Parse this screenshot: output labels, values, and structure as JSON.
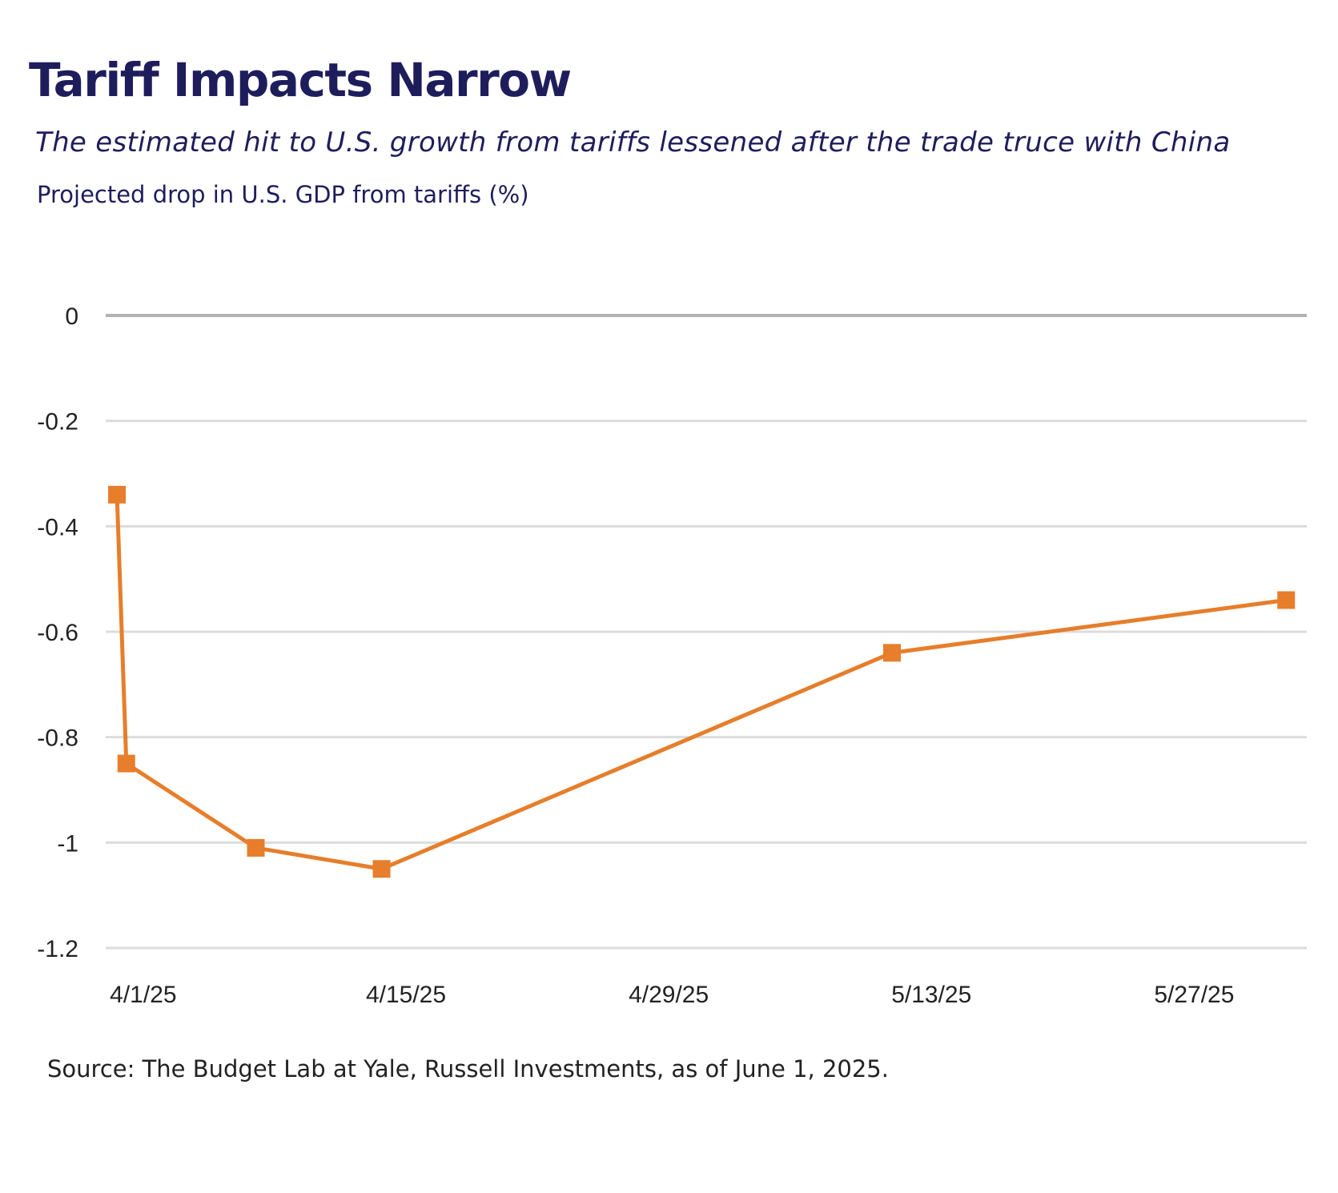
{
  "chart_data": {
    "type": "line",
    "title": "Tariff Impacts Narrow",
    "subtitle": "The estimated hit to U.S. growth from tariffs lessened after the trade truce with China",
    "ylabel": "Projected drop in U.S. GDP from tariffs (%)",
    "xlabel": "",
    "source": "Source: The Budget Lab at Yale, Russell Investments, as of June 1, 2025.",
    "ylim": [
      -1.2,
      0
    ],
    "yticks": [
      0,
      -0.2,
      -0.4,
      -0.6,
      -0.8,
      -1,
      -1.2
    ],
    "ytick_labels": [
      "0",
      "-0.2",
      "-0.4",
      "-0.6",
      "-0.8",
      "-1",
      "-1.2"
    ],
    "xlim_day": [
      -1,
      63
    ],
    "xticks_day": [
      1,
      15,
      29,
      43,
      57
    ],
    "xtick_labels": [
      "4/1/25",
      "4/15/25",
      "4/29/25",
      "5/13/25",
      "5/27/25"
    ],
    "grid": true,
    "series": [
      {
        "name": "Projected drop in U.S. GDP from tariffs (%)",
        "color": "#e67e2b",
        "marker": "square",
        "x_labels": [
          "4/2/25",
          "4/2/25",
          "4/9/25",
          "4/15/25",
          "5/12/25",
          "6/1/25"
        ],
        "x_day": [
          -0.4,
          0.1,
          7,
          13.7,
          40.9,
          61.9
        ],
        "values": [
          -0.34,
          -0.85,
          -1.01,
          -1.05,
          -0.64,
          -0.54
        ]
      }
    ]
  }
}
